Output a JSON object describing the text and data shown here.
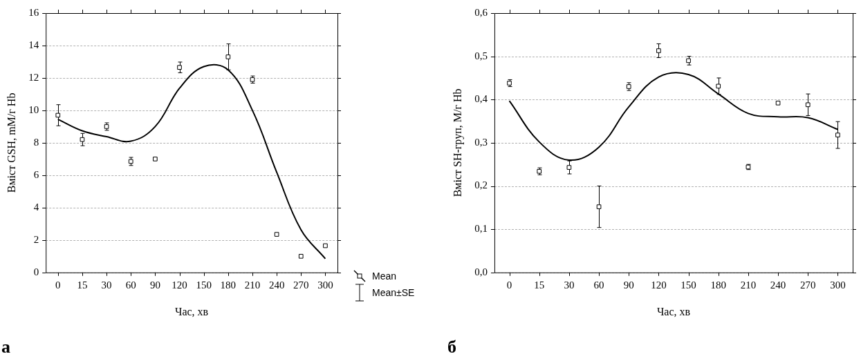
{
  "chart_data": [
    {
      "type": "scatter",
      "xlabel": "Час, хв",
      "ylabel": "Вміст GSH, mM/г Hb",
      "categories": [
        "0",
        "15",
        "30",
        "60",
        "90",
        "120",
        "150",
        "180",
        "210",
        "240",
        "270",
        "300"
      ],
      "series": [
        {
          "name": "Mean",
          "marker": "square",
          "color": "#000000",
          "values": [
            9.7,
            8.2,
            9.0,
            6.85,
            7.0,
            12.65,
            null,
            13.3,
            11.9,
            2.35,
            1.0,
            1.65
          ],
          "errors": [
            0.65,
            0.38,
            0.23,
            0.25,
            0.05,
            0.33,
            null,
            0.8,
            0.22,
            null,
            null,
            0.05
          ]
        },
        {
          "type": "line",
          "marker": "none",
          "color": "#000000",
          "values": [
            9.45,
            8.74,
            8.38,
            8.1,
            9.0,
            11.36,
            12.7,
            12.5,
            10.0,
            6.18,
            2.63,
            0.85
          ]
        }
      ],
      "ylim": [
        0,
        16
      ],
      "yticks": [
        0,
        2,
        4,
        6,
        8,
        10,
        12,
        14,
        16
      ],
      "grid": "y",
      "legend": "bottom right",
      "annotations": [
        "Mean±SE",
        "а"
      ]
    },
    {
      "type": "scatter",
      "xlabel": "Час, хв",
      "ylabel": "Вміст SH-груп, M/г Hb",
      "categories": [
        "0",
        "15",
        "30",
        "60",
        "90",
        "120",
        "150",
        "180",
        "210",
        "240",
        "270",
        "300"
      ],
      "series": [
        {
          "marker": "square",
          "color": "#000000",
          "values": [
            0.438,
            0.234,
            0.243,
            0.152,
            0.43,
            0.513,
            0.49,
            0.431,
            0.244,
            0.392,
            0.388,
            0.318
          ],
          "errors": [
            0.008,
            0.008,
            0.015,
            0.048,
            0.009,
            0.016,
            0.01,
            0.019,
            0.006,
            null,
            0.025,
            0.031
          ]
        },
        {
          "type": "line",
          "marker": "none",
          "color": "#000000",
          "values": [
            0.397,
            0.302,
            0.26,
            0.29,
            0.383,
            0.452,
            0.458,
            0.413,
            0.368,
            0.36,
            0.358,
            0.331
          ]
        }
      ],
      "ylim": [
        0,
        0.6
      ],
      "yticks": [
        {
          "value": 0,
          "label": "0,0"
        },
        {
          "value": 0.1,
          "label": "0,1"
        },
        {
          "value": 0.2,
          "label": "0,2"
        },
        {
          "value": 0.3,
          "label": "0,3"
        },
        {
          "value": 0.4,
          "label": "0,4"
        },
        {
          "value": 0.5,
          "label": "0,5"
        },
        {
          "value": 0.6,
          "label": "0,6"
        }
      ],
      "grid": "y",
      "annotations": [
        "б"
      ]
    }
  ]
}
